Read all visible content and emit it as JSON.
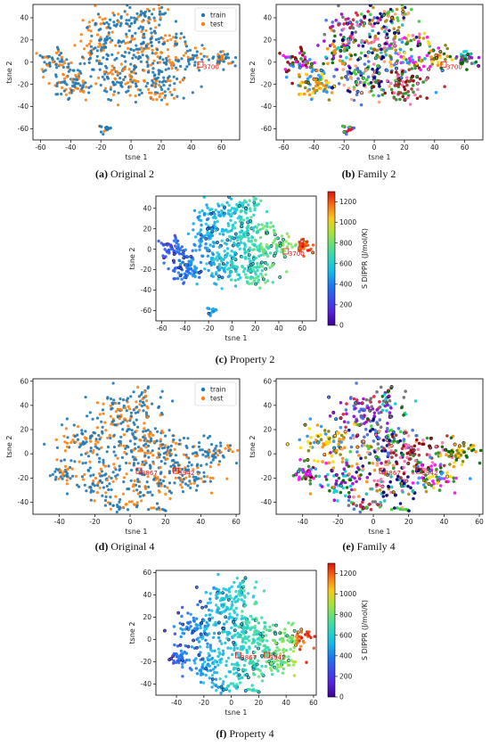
{
  "chart_data": [
    {
      "type": "scatter",
      "kind": "split",
      "caption_letter": "(a)",
      "caption_text": "Original 2",
      "xlabel": "tsne 1",
      "ylabel": "tsne 2",
      "xlim": [
        -65,
        72
      ],
      "ylim": [
        -70,
        52
      ],
      "xticks": [
        -60,
        -40,
        -20,
        0,
        20,
        40,
        60
      ],
      "yticks": [
        -60,
        -40,
        -20,
        0,
        20,
        40
      ],
      "series": [
        {
          "name": "train",
          "color": "#1f77b4"
        },
        {
          "name": "test",
          "color": "#ff7f0e"
        }
      ],
      "legend_position": "top-right",
      "annotations": [
        {
          "label": "3700",
          "x": 46,
          "y": -2
        }
      ],
      "clusters": [
        {
          "x": -50,
          "y": 2,
          "sx": 5,
          "sy": 6,
          "n": 45
        },
        {
          "x": -38,
          "y": -18,
          "sx": 7,
          "sy": 7,
          "n": 80
        },
        {
          "x": -22,
          "y": 12,
          "sx": 7,
          "sy": 9,
          "n": 60
        },
        {
          "x": -15,
          "y": 35,
          "sx": 8,
          "sy": 6,
          "n": 40
        },
        {
          "x": -5,
          "y": -15,
          "sx": 10,
          "sy": 9,
          "n": 110
        },
        {
          "x": 5,
          "y": 20,
          "sx": 12,
          "sy": 10,
          "n": 120
        },
        {
          "x": 18,
          "y": -20,
          "sx": 10,
          "sy": 9,
          "n": 80
        },
        {
          "x": 25,
          "y": 8,
          "sx": 10,
          "sy": 10,
          "n": 70
        },
        {
          "x": 42,
          "y": 5,
          "sx": 5,
          "sy": 7,
          "n": 25
        },
        {
          "x": 60,
          "y": 3,
          "sx": 4,
          "sy": 3,
          "n": 40
        },
        {
          "x": -17,
          "y": -60,
          "sx": 2,
          "sy": 2,
          "n": 15
        },
        {
          "x": 10,
          "y": 42,
          "sx": 8,
          "sy": 5,
          "n": 40
        }
      ]
    },
    {
      "type": "scatter",
      "kind": "family",
      "caption_letter": "(b)",
      "caption_text": "Family 2",
      "xlabel": "tsne 1",
      "ylabel": "tsne 2",
      "xlim": [
        -65,
        72
      ],
      "ylim": [
        -70,
        52
      ],
      "xticks": [
        -60,
        -40,
        -20,
        0,
        20,
        40,
        60
      ],
      "yticks": [
        -60,
        -40,
        -20,
        0,
        20,
        40
      ],
      "annotations": [
        {
          "label": "3700",
          "x": 46,
          "y": -2
        }
      ],
      "clusters": [
        {
          "x": -50,
          "y": 2,
          "sx": 5,
          "sy": 6,
          "n": 45
        },
        {
          "x": -38,
          "y": -18,
          "sx": 7,
          "sy": 7,
          "n": 80
        },
        {
          "x": -22,
          "y": 12,
          "sx": 7,
          "sy": 9,
          "n": 60
        },
        {
          "x": -15,
          "y": 35,
          "sx": 8,
          "sy": 6,
          "n": 40
        },
        {
          "x": -5,
          "y": -15,
          "sx": 10,
          "sy": 9,
          "n": 110
        },
        {
          "x": 5,
          "y": 20,
          "sx": 12,
          "sy": 10,
          "n": 120
        },
        {
          "x": 18,
          "y": -20,
          "sx": 10,
          "sy": 9,
          "n": 80
        },
        {
          "x": 25,
          "y": 8,
          "sx": 10,
          "sy": 10,
          "n": 70
        },
        {
          "x": 42,
          "y": 5,
          "sx": 5,
          "sy": 7,
          "n": 25
        },
        {
          "x": 60,
          "y": 3,
          "sx": 4,
          "sy": 3,
          "n": 40
        },
        {
          "x": -17,
          "y": -60,
          "sx": 2,
          "sy": 2,
          "n": 15
        },
        {
          "x": 10,
          "y": 42,
          "sx": 8,
          "sy": 5,
          "n": 40
        }
      ]
    },
    {
      "type": "scatter",
      "kind": "property",
      "caption_letter": "(c)",
      "caption_text": "Property 2",
      "xlabel": "tsne 1",
      "ylabel": "tsne 2",
      "xlim": [
        -65,
        72
      ],
      "ylim": [
        -70,
        52
      ],
      "xticks": [
        -60,
        -40,
        -20,
        0,
        20,
        40,
        60
      ],
      "yticks": [
        -60,
        -40,
        -20,
        0,
        20,
        40
      ],
      "colorbar_label": "S DIPPR (J/mol/K)",
      "colorbar_range": [
        0,
        1300
      ],
      "colorbar_ticks": [
        0,
        200,
        400,
        600,
        800,
        1000,
        1200
      ],
      "annotations": [
        {
          "label": "3700",
          "x": 46,
          "y": -2
        }
      ],
      "clusters": [
        {
          "x": -50,
          "y": 2,
          "sx": 5,
          "sy": 6,
          "n": 45
        },
        {
          "x": -38,
          "y": -18,
          "sx": 7,
          "sy": 7,
          "n": 80
        },
        {
          "x": -22,
          "y": 12,
          "sx": 7,
          "sy": 9,
          "n": 60
        },
        {
          "x": -15,
          "y": 35,
          "sx": 8,
          "sy": 6,
          "n": 40
        },
        {
          "x": -5,
          "y": -15,
          "sx": 10,
          "sy": 9,
          "n": 110
        },
        {
          "x": 5,
          "y": 20,
          "sx": 12,
          "sy": 10,
          "n": 120
        },
        {
          "x": 18,
          "y": -20,
          "sx": 10,
          "sy": 9,
          "n": 80
        },
        {
          "x": 25,
          "y": 8,
          "sx": 10,
          "sy": 10,
          "n": 70
        },
        {
          "x": 42,
          "y": 5,
          "sx": 5,
          "sy": 7,
          "n": 25
        },
        {
          "x": 60,
          "y": 3,
          "sx": 4,
          "sy": 3,
          "n": 40
        },
        {
          "x": -17,
          "y": -60,
          "sx": 2,
          "sy": 2,
          "n": 15
        },
        {
          "x": 10,
          "y": 42,
          "sx": 8,
          "sy": 5,
          "n": 40
        }
      ]
    },
    {
      "type": "scatter",
      "kind": "split",
      "caption_letter": "(d)",
      "caption_text": "Original 4",
      "xlabel": "tsne 1",
      "ylabel": "tsne 2",
      "xlim": [
        -55,
        62
      ],
      "ylim": [
        -50,
        62
      ],
      "xticks": [
        -40,
        -20,
        0,
        20,
        40,
        60
      ],
      "yticks": [
        -40,
        -20,
        0,
        20,
        40,
        60
      ],
      "series": [
        {
          "name": "train",
          "color": "#1f77b4"
        },
        {
          "name": "test",
          "color": "#ff7f0e"
        }
      ],
      "legend_position": "top-right",
      "annotations": [
        {
          "label": "3867",
          "x": 5,
          "y": -14
        },
        {
          "label": "3942",
          "x": 26,
          "y": -14
        }
      ],
      "clusters": [
        {
          "x": -38,
          "y": -16,
          "sx": 5,
          "sy": 5,
          "n": 40
        },
        {
          "x": -25,
          "y": 10,
          "sx": 9,
          "sy": 10,
          "n": 80
        },
        {
          "x": -15,
          "y": -20,
          "sx": 8,
          "sy": 8,
          "n": 80
        },
        {
          "x": -5,
          "y": 35,
          "sx": 7,
          "sy": 10,
          "n": 80
        },
        {
          "x": 5,
          "y": 10,
          "sx": 10,
          "sy": 10,
          "n": 110
        },
        {
          "x": 10,
          "y": -25,
          "sx": 9,
          "sy": 8,
          "n": 80
        },
        {
          "x": 25,
          "y": 0,
          "sx": 10,
          "sy": 9,
          "n": 90
        },
        {
          "x": 35,
          "y": -20,
          "sx": 7,
          "sy": 6,
          "n": 50
        },
        {
          "x": 48,
          "y": 2,
          "sx": 6,
          "sy": 5,
          "n": 50
        },
        {
          "x": 10,
          "y": 40,
          "sx": 6,
          "sy": 8,
          "n": 40
        },
        {
          "x": -5,
          "y": -43,
          "sx": 6,
          "sy": 2,
          "n": 25
        },
        {
          "x": 15,
          "y": -45,
          "sx": 3,
          "sy": 1.5,
          "n": 10
        }
      ]
    },
    {
      "type": "scatter",
      "kind": "family",
      "caption_letter": "(e)",
      "caption_text": "Family 4",
      "xlabel": "tsne 1",
      "ylabel": "tsne 2",
      "xlim": [
        -55,
        62
      ],
      "ylim": [
        -50,
        62
      ],
      "xticks": [
        -40,
        -20,
        0,
        20,
        40,
        60
      ],
      "yticks": [
        -40,
        -20,
        0,
        20,
        40,
        60
      ],
      "annotations": [
        {
          "label": "3867",
          "x": 5,
          "y": -14
        },
        {
          "label": "3942",
          "x": 26,
          "y": -14
        }
      ],
      "clusters": [
        {
          "x": -38,
          "y": -16,
          "sx": 5,
          "sy": 5,
          "n": 40
        },
        {
          "x": -25,
          "y": 10,
          "sx": 9,
          "sy": 10,
          "n": 80
        },
        {
          "x": -15,
          "y": -20,
          "sx": 8,
          "sy": 8,
          "n": 80
        },
        {
          "x": -5,
          "y": 35,
          "sx": 7,
          "sy": 10,
          "n": 80
        },
        {
          "x": 5,
          "y": 10,
          "sx": 10,
          "sy": 10,
          "n": 110
        },
        {
          "x": 10,
          "y": -25,
          "sx": 9,
          "sy": 8,
          "n": 80
        },
        {
          "x": 25,
          "y": 0,
          "sx": 10,
          "sy": 9,
          "n": 90
        },
        {
          "x": 35,
          "y": -20,
          "sx": 7,
          "sy": 6,
          "n": 50
        },
        {
          "x": 48,
          "y": 2,
          "sx": 6,
          "sy": 5,
          "n": 50
        },
        {
          "x": 10,
          "y": 40,
          "sx": 6,
          "sy": 8,
          "n": 40
        },
        {
          "x": -5,
          "y": -43,
          "sx": 6,
          "sy": 2,
          "n": 25
        },
        {
          "x": 15,
          "y": -45,
          "sx": 3,
          "sy": 1.5,
          "n": 10
        }
      ]
    },
    {
      "type": "scatter",
      "kind": "property",
      "caption_letter": "(f)",
      "caption_text": "Property 4",
      "xlabel": "tsne 1",
      "ylabel": "tsne 2",
      "xlim": [
        -55,
        62
      ],
      "ylim": [
        -50,
        62
      ],
      "xticks": [
        -40,
        -20,
        0,
        20,
        40,
        60
      ],
      "yticks": [
        -40,
        -20,
        0,
        20,
        40,
        60
      ],
      "colorbar_label": "S DIPPR (J/mol/K)",
      "colorbar_range": [
        0,
        1300
      ],
      "colorbar_ticks": [
        0,
        200,
        400,
        600,
        800,
        1000,
        1200
      ],
      "annotations": [
        {
          "label": "3867",
          "x": 5,
          "y": -14
        },
        {
          "label": "3942",
          "x": 26,
          "y": -14
        }
      ],
      "clusters": [
        {
          "x": -38,
          "y": -16,
          "sx": 5,
          "sy": 5,
          "n": 40
        },
        {
          "x": -25,
          "y": 10,
          "sx": 9,
          "sy": 10,
          "n": 80
        },
        {
          "x": -15,
          "y": -20,
          "sx": 8,
          "sy": 8,
          "n": 80
        },
        {
          "x": -5,
          "y": 35,
          "sx": 7,
          "sy": 10,
          "n": 80
        },
        {
          "x": 5,
          "y": 10,
          "sx": 10,
          "sy": 10,
          "n": 110
        },
        {
          "x": 10,
          "y": -25,
          "sx": 9,
          "sy": 8,
          "n": 80
        },
        {
          "x": 25,
          "y": 0,
          "sx": 10,
          "sy": 9,
          "n": 90
        },
        {
          "x": 35,
          "y": -20,
          "sx": 7,
          "sy": 6,
          "n": 50
        },
        {
          "x": 48,
          "y": 2,
          "sx": 6,
          "sy": 5,
          "n": 50
        },
        {
          "x": 10,
          "y": 40,
          "sx": 6,
          "sy": 8,
          "n": 40
        },
        {
          "x": -5,
          "y": -43,
          "sx": 6,
          "sy": 2,
          "n": 25
        },
        {
          "x": 15,
          "y": -45,
          "sx": 3,
          "sy": 1.5,
          "n": 10
        }
      ]
    }
  ]
}
